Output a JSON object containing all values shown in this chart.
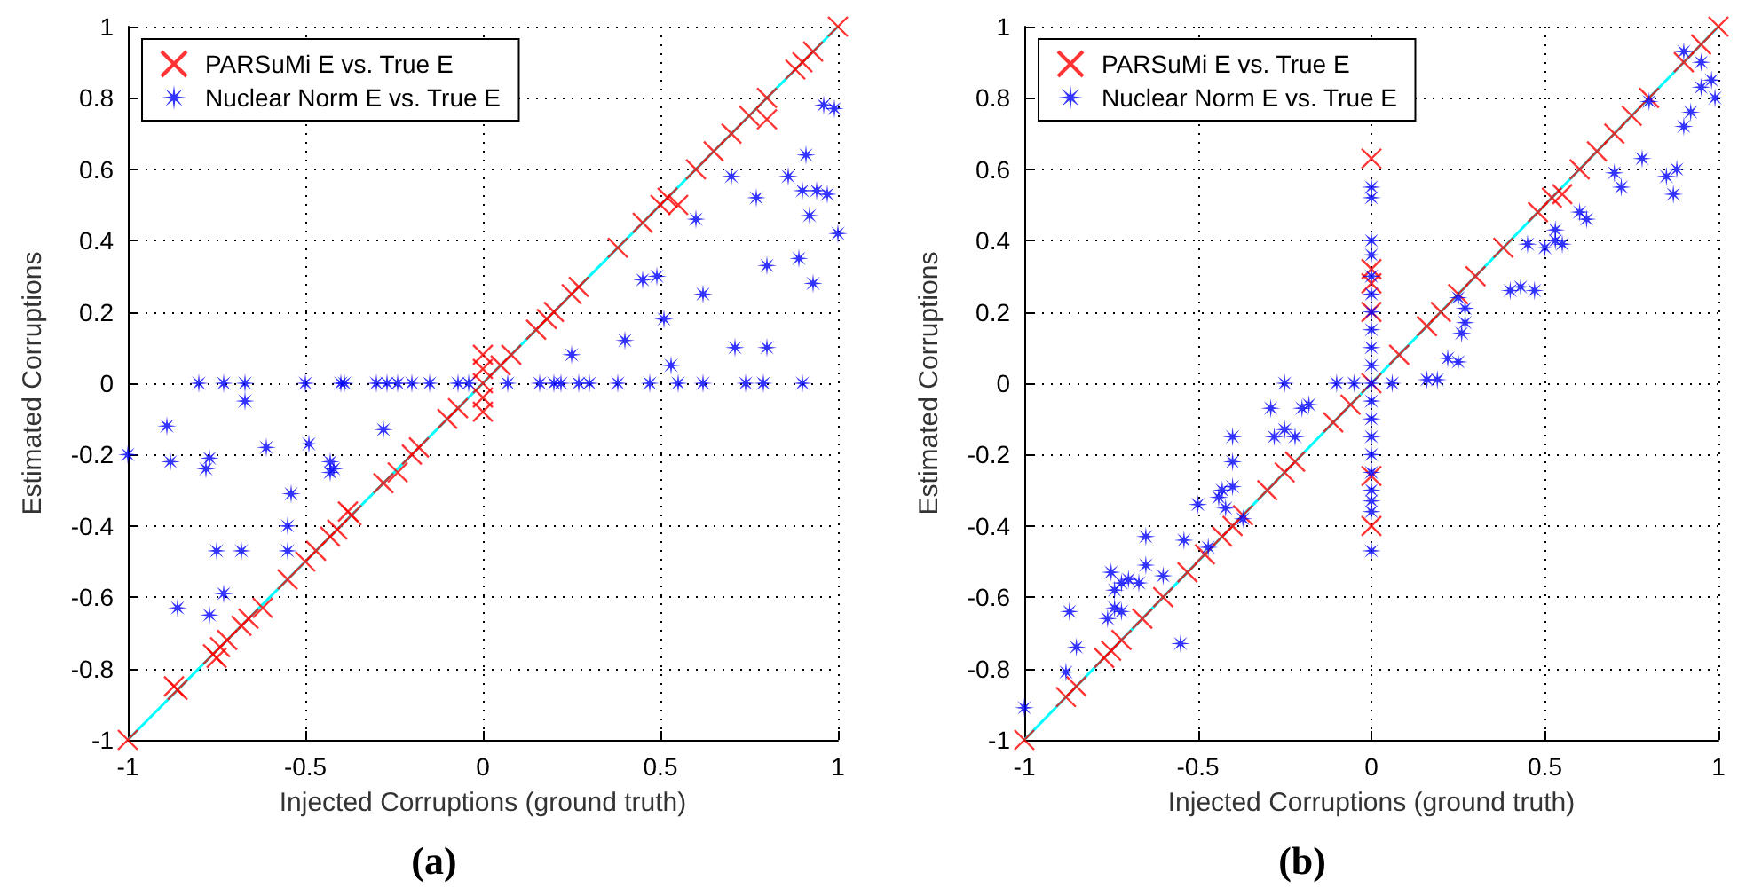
{
  "chart_data": [
    {
      "type": "scatter",
      "title": "(a)",
      "xlabel": "Injected Corruptions (ground truth)",
      "ylabel": "Estimated Corruptions",
      "xlim": [
        -1,
        1
      ],
      "ylim": [
        -1,
        1
      ],
      "xticks": [
        -1,
        -0.5,
        0,
        0.5,
        1
      ],
      "yticks": [
        -1,
        -0.8,
        -0.6,
        -0.4,
        -0.2,
        0,
        0.2,
        0.4,
        0.6,
        0.8,
        1
      ],
      "grid": true,
      "legend": "top left",
      "series": [
        {
          "type": "line",
          "color": "#00ffff",
          "marker": "none",
          "line_style": "solid",
          "x": [
            -1,
            1
          ],
          "values": [
            -1,
            1
          ]
        },
        {
          "name": "PARSuMi E vs. True E",
          "color": "#ff0000",
          "marker": "cross",
          "x": [
            -1,
            -0.87,
            -0.86,
            -0.76,
            -0.75,
            -0.74,
            -0.72,
            -0.68,
            -0.66,
            -0.62,
            -0.55,
            -0.5,
            -0.47,
            -0.43,
            -0.41,
            -0.38,
            -0.37,
            -0.28,
            -0.24,
            -0.2,
            -0.18,
            -0.1,
            -0.07,
            0,
            0,
            0,
            0,
            0,
            0.05,
            0.08,
            0.15,
            0.18,
            0.2,
            0.25,
            0.27,
            0.38,
            0.45,
            0.5,
            0.52,
            0.55,
            0.6,
            0.65,
            0.7,
            0.75,
            0.8,
            0.8,
            0.88,
            0.9,
            0.93,
            1
          ],
          "values": [
            -1,
            -0.85,
            -0.86,
            -0.76,
            -0.77,
            -0.74,
            -0.72,
            -0.68,
            -0.66,
            -0.63,
            -0.55,
            -0.5,
            -0.47,
            -0.43,
            -0.41,
            -0.36,
            -0.37,
            -0.28,
            -0.25,
            -0.2,
            -0.18,
            -0.1,
            -0.07,
            0.08,
            0.04,
            0,
            -0.04,
            -0.08,
            0.05,
            0.08,
            0.15,
            0.18,
            0.2,
            0.25,
            0.27,
            0.38,
            0.45,
            0.5,
            0.52,
            0.5,
            0.6,
            0.65,
            0.7,
            0.75,
            0.8,
            0.74,
            0.88,
            0.9,
            0.93,
            1
          ]
        },
        {
          "name": "Nuclear Norm E vs. True E",
          "color": "#0000ff",
          "marker": "star",
          "x": [
            -0.8,
            -0.73,
            -0.67,
            -0.5,
            -0.4,
            -0.39,
            -0.3,
            -0.27,
            -0.24,
            -0.2,
            -0.15,
            -0.07,
            -0.04,
            0.07,
            0.16,
            0.2,
            0.22,
            0.27,
            0.3,
            0.38,
            0.47,
            0.55,
            0.62,
            0.74,
            0.79,
            0.9,
            -1,
            -0.89,
            -0.88,
            -0.78,
            -0.77,
            -0.67,
            -0.61,
            -0.49,
            -0.43,
            -0.43,
            -0.42,
            -0.28,
            -0.54,
            -0.55,
            -0.55,
            -0.75,
            -0.68,
            -0.73,
            -0.86,
            -0.77,
            0.25,
            0.4,
            0.45,
            0.49,
            0.51,
            0.53,
            0.62,
            0.71,
            0.8,
            0.6,
            0.7,
            0.77,
            0.86,
            0.9,
            0.94,
            0.97,
            0.92,
            0.91,
            0.89,
            0.93,
            0.8,
            0.96,
            0.99,
            1
          ],
          "values": [
            0,
            0,
            0,
            0,
            0,
            0,
            0,
            0,
            0,
            0,
            0,
            0,
            0,
            0,
            0,
            0,
            0,
            0,
            0,
            0,
            0,
            0,
            0,
            0,
            0,
            0,
            -0.2,
            -0.12,
            -0.22,
            -0.24,
            -0.21,
            -0.05,
            -0.18,
            -0.17,
            -0.22,
            -0.25,
            -0.24,
            -0.13,
            -0.31,
            -0.4,
            -0.47,
            -0.47,
            -0.47,
            -0.59,
            -0.63,
            -0.65,
            0.08,
            0.12,
            0.29,
            0.3,
            0.18,
            0.05,
            0.25,
            0.1,
            0.1,
            0.46,
            0.58,
            0.52,
            0.58,
            0.54,
            0.54,
            0.53,
            0.47,
            0.64,
            0.35,
            0.28,
            0.33,
            0.78,
            0.77,
            0.42
          ]
        }
      ]
    },
    {
      "type": "scatter",
      "title": "(b)",
      "xlabel": "Injected Corruptions (ground truth)",
      "ylabel": "Estimated Corruptions",
      "xlim": [
        -1,
        1
      ],
      "ylim": [
        -1,
        1
      ],
      "xticks": [
        -1,
        -0.5,
        0,
        0.5,
        1
      ],
      "yticks": [
        -1,
        -0.8,
        -0.6,
        -0.4,
        -0.2,
        0,
        0.2,
        0.4,
        0.6,
        0.8,
        1
      ],
      "grid": true,
      "legend": "top left",
      "series": [
        {
          "type": "line",
          "color": "#00ffff",
          "marker": "none",
          "line_style": "solid",
          "x": [
            -1,
            1
          ],
          "values": [
            -1,
            1
          ]
        },
        {
          "name": "PARSuMi E vs. True E",
          "color": "#ff0000",
          "marker": "cross",
          "x": [
            -1,
            -0.88,
            -0.85,
            -0.77,
            -0.75,
            -0.72,
            -0.66,
            -0.6,
            -0.53,
            -0.48,
            -0.43,
            -0.4,
            -0.37,
            -0.3,
            -0.25,
            -0.22,
            -0.11,
            -0.06,
            0,
            0,
            0,
            0,
            0,
            0,
            0,
            0.08,
            0.16,
            0.2,
            0.25,
            0.3,
            0.38,
            0.48,
            0.52,
            0.55,
            0.6,
            0.65,
            0.7,
            0.75,
            0.8,
            0.9,
            0.95,
            1
          ],
          "values": [
            -1,
            -0.88,
            -0.85,
            -0.77,
            -0.75,
            -0.72,
            -0.66,
            -0.6,
            -0.53,
            -0.48,
            -0.43,
            -0.4,
            -0.37,
            -0.3,
            -0.25,
            -0.22,
            -0.11,
            -0.06,
            0.63,
            0.32,
            0.28,
            0.2,
            0,
            -0.26,
            -0.4,
            0.08,
            0.16,
            0.2,
            0.25,
            0.3,
            0.38,
            0.48,
            0.52,
            0.53,
            0.6,
            0.65,
            0.7,
            0.75,
            0.8,
            0.9,
            0.95,
            1
          ]
        },
        {
          "name": "Nuclear Norm E vs. True E",
          "color": "#0000ff",
          "marker": "star",
          "x": [
            0,
            0,
            0,
            0,
            0,
            0,
            0,
            0,
            0,
            0,
            0,
            0,
            0,
            0,
            0,
            0,
            0,
            0,
            0,
            0,
            -1,
            -0.88,
            -0.85,
            -0.87,
            -0.76,
            -0.75,
            -0.74,
            -0.72,
            -0.7,
            -0.67,
            -0.65,
            -0.65,
            -0.6,
            -0.74,
            -0.72,
            -0.55,
            -0.54,
            -0.5,
            -0.44,
            -0.43,
            -0.42,
            -0.4,
            -0.4,
            -0.4,
            -0.47,
            -0.37,
            -0.29,
            -0.25,
            -0.28,
            -0.25,
            -0.2,
            -0.18,
            -0.22,
            -0.1,
            -0.05,
            0.06,
            0.16,
            0.19,
            0.22,
            0.25,
            0.25,
            0.26,
            0.27,
            0.27,
            0.4,
            0.43,
            0.47,
            0.45,
            0.5,
            0.53,
            0.55,
            0.53,
            0.6,
            0.62,
            0.7,
            0.72,
            0.78,
            0.85,
            0.87,
            0.88,
            0.8,
            0.9,
            0.92,
            0.9,
            0.95,
            0.95,
            0.98,
            0.99
          ],
          "values": [
            0.55,
            0.52,
            0.4,
            0.36,
            0.3,
            0.25,
            0.2,
            0.15,
            0.1,
            0.05,
            0,
            -0.05,
            -0.1,
            -0.15,
            -0.2,
            -0.25,
            -0.3,
            -0.33,
            -0.36,
            -0.47,
            -0.91,
            -0.81,
            -0.74,
            -0.64,
            -0.66,
            -0.53,
            -0.58,
            -0.56,
            -0.55,
            -0.56,
            -0.51,
            -0.43,
            -0.54,
            -0.63,
            -0.64,
            -0.73,
            -0.44,
            -0.34,
            -0.32,
            -0.3,
            -0.35,
            -0.29,
            -0.22,
            -0.15,
            -0.46,
            -0.38,
            -0.07,
            0,
            -0.15,
            -0.13,
            -0.07,
            -0.06,
            -0.15,
            0,
            0,
            0,
            0.01,
            0.01,
            0.07,
            0.06,
            0.24,
            0.14,
            0.17,
            0.21,
            0.26,
            0.27,
            0.26,
            0.39,
            0.38,
            0.4,
            0.39,
            0.43,
            0.48,
            0.46,
            0.59,
            0.55,
            0.63,
            0.58,
            0.53,
            0.6,
            0.79,
            0.72,
            0.76,
            0.93,
            0.9,
            0.83,
            0.85,
            0.8
          ]
        }
      ]
    }
  ]
}
